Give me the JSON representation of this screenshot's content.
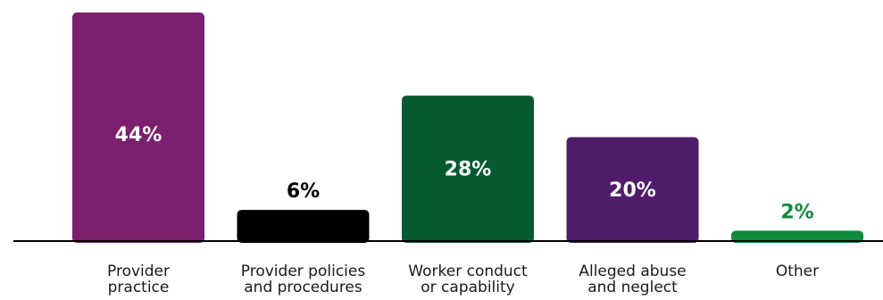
{
  "chart_data": {
    "type": "bar",
    "categories": [
      [
        "Provider",
        "practice"
      ],
      [
        "Provider policies",
        "and procedures"
      ],
      [
        "Worker conduct",
        "or capability"
      ],
      [
        "Alleged abuse",
        "and neglect"
      ],
      [
        "Other"
      ]
    ],
    "values": [
      44,
      6,
      28,
      20,
      2
    ],
    "value_labels": [
      "44%",
      "6%",
      "28%",
      "20%",
      "2%"
    ],
    "ylim": [
      0,
      44
    ],
    "bar_colors": [
      "#7b1f6e",
      "#000000",
      "#055a2e",
      "#4f1c6a",
      "#0f8a3c"
    ],
    "value_label_colors": [
      "#ffffff",
      "#000000",
      "#ffffff",
      "#ffffff",
      "#0f8a3c"
    ],
    "grid": false,
    "legend": "none"
  }
}
